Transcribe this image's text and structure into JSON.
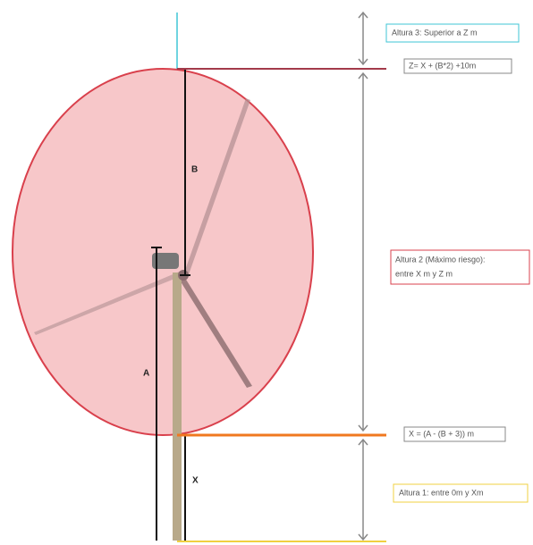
{
  "labels": {
    "altura3": "Altura 3: Superior a Z m",
    "formula_z": "Z= X + (B*2) +10m",
    "b": "B",
    "altura2_line1": "Altura 2 (Máximo riesgo):",
    "altura2_line2": "entre X m y Z m",
    "a": "A",
    "formula_x": "X = (A - (B + 3)) m",
    "x": "X",
    "altura1": "Altura 1: entre 0m y Xm"
  }
}
